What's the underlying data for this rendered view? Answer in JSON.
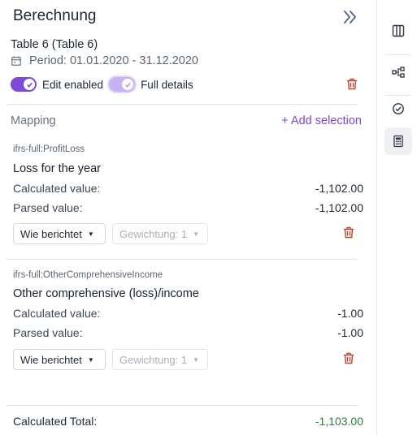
{
  "header": {
    "title": "Berechnung",
    "table_name": "Table 6 (Table 6)",
    "period": "Period: 01.01.2020 - 31.12.2020"
  },
  "toggles": {
    "edit_label": "Edit enabled",
    "edit_on": true,
    "details_label": "Full details",
    "details_on": true
  },
  "mapping": {
    "heading": "Mapping",
    "add_label": "+ Add selection",
    "items": [
      {
        "tag": "ifrs-full:ProfitLoss",
        "name": "Loss for the year",
        "calc_label": "Calculated value:",
        "calc_value": "-1,102.00",
        "parsed_label": "Parsed value:",
        "parsed_value": "-1,102.00",
        "mode_select": "Wie berichtet",
        "weight_select": "Gewichtung: 1"
      },
      {
        "tag": "ifrs-full:OtherComprehensiveIncome",
        "name": "Other comprehensive (loss)/income",
        "calc_label": "Calculated value:",
        "calc_value": "-1.00",
        "parsed_label": "Parsed value:",
        "parsed_value": "-1.00",
        "mode_select": "Wie berichtet",
        "weight_select": "Gewichtung: 1"
      }
    ]
  },
  "total": {
    "label": "Calculated Total:",
    "value": "-1,103.00"
  },
  "colors": {
    "accent": "#7e4ad9",
    "danger": "#c0432d",
    "positive_total": "#2f7d3f"
  },
  "icons": {
    "collapse": "double-chevron-right-icon",
    "calendar": "calendar-icon",
    "delete": "trash-icon",
    "rail": [
      "columns-icon",
      "tree-icon",
      "check-circle-icon",
      "calculator-icon"
    ]
  }
}
